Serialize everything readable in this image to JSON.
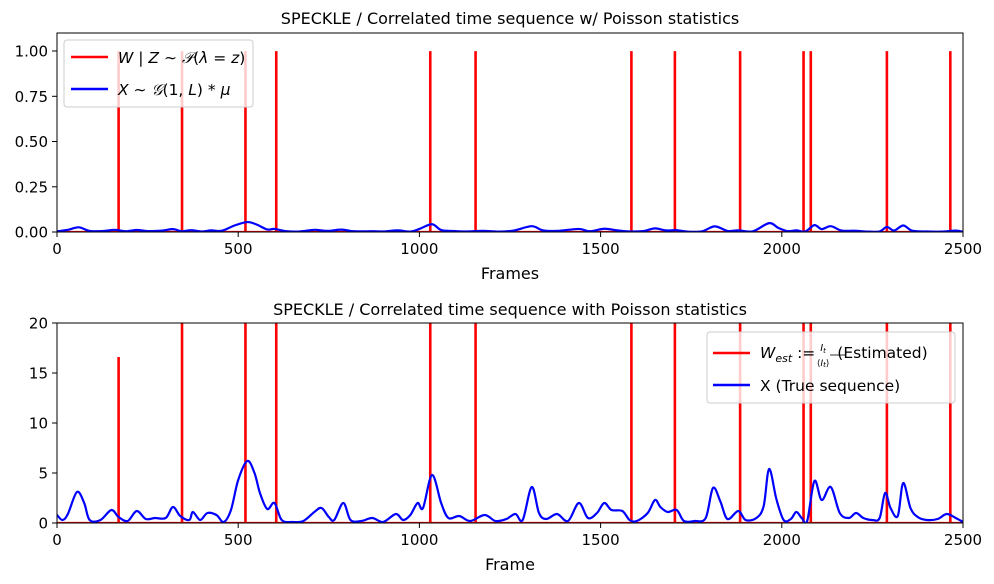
{
  "chart_data": [
    {
      "type": "line",
      "title": "SPECKLE / Correlated time sequence w/ Poisson statistics",
      "xlabel": "Frames",
      "ylabel": "",
      "xlim": [
        0,
        2500
      ],
      "ylim": [
        0,
        1.1
      ],
      "xticks": [
        "0",
        "500",
        "1000",
        "1500",
        "2000",
        "2500"
      ],
      "yticks": [
        "0.00",
        "0.25",
        "0.50",
        "0.75",
        "1.00"
      ],
      "grid": false,
      "legend_position": "top-left",
      "series": [
        {
          "name": "W | Z ~ P(λ = z)",
          "color": "#ff0000",
          "kind": "spikes",
          "points": [
            [
              170,
              1
            ],
            [
              345,
              1
            ],
            [
              520,
              1
            ],
            [
              605,
              1
            ],
            [
              1030,
              1
            ],
            [
              1155,
              1
            ],
            [
              1585,
              1
            ],
            [
              1705,
              1
            ],
            [
              1885,
              1
            ],
            [
              2060,
              1
            ],
            [
              2080,
              1
            ],
            [
              2290,
              1
            ],
            [
              2465,
              1
            ]
          ]
        },
        {
          "name": "X ~ G(1, L) * μ",
          "color": "#0000ff",
          "kind": "smooth",
          "points": [
            [
              0,
              0.004
            ],
            [
              30,
              0.012
            ],
            [
              60,
              0.026
            ],
            [
              90,
              0.006
            ],
            [
              125,
              0.005
            ],
            [
              160,
              0.012
            ],
            [
              190,
              0.004
            ],
            [
              220,
              0.011
            ],
            [
              250,
              0.005
            ],
            [
              290,
              0.008
            ],
            [
              320,
              0.016
            ],
            [
              345,
              0.004
            ],
            [
              370,
              0.01
            ],
            [
              400,
              0.003
            ],
            [
              425,
              0.009
            ],
            [
              455,
              0.007
            ],
            [
              490,
              0.036
            ],
            [
              525,
              0.055
            ],
            [
              550,
              0.042
            ],
            [
              580,
              0.014
            ],
            [
              600,
              0.017
            ],
            [
              630,
              0.005
            ],
            [
              670,
              0.003
            ],
            [
              710,
              0.012
            ],
            [
              745,
              0.006
            ],
            [
              785,
              0.013
            ],
            [
              820,
              0.004
            ],
            [
              870,
              0.004
            ],
            [
              900,
              0.003
            ],
            [
              940,
              0.009
            ],
            [
              975,
              0.002
            ],
            [
              1000,
              0.017
            ],
            [
              1035,
              0.043
            ],
            [
              1060,
              0.011
            ],
            [
              1100,
              0.005
            ],
            [
              1130,
              0.003
            ],
            [
              1175,
              0.006
            ],
            [
              1220,
              0.002
            ],
            [
              1260,
              0.008
            ],
            [
              1310,
              0.032
            ],
            [
              1340,
              0.009
            ],
            [
              1380,
              0.006
            ],
            [
              1440,
              0.017
            ],
            [
              1470,
              0.004
            ],
            [
              1510,
              0.018
            ],
            [
              1545,
              0.009
            ],
            [
              1580,
              0.003
            ],
            [
              1620,
              0.006
            ],
            [
              1650,
              0.02
            ],
            [
              1680,
              0.009
            ],
            [
              1710,
              0.01
            ],
            [
              1740,
              0.002
            ],
            [
              1780,
              0.004
            ],
            [
              1815,
              0.031
            ],
            [
              1850,
              0.006
            ],
            [
              1880,
              0.009
            ],
            [
              1920,
              0.004
            ],
            [
              1965,
              0.049
            ],
            [
              1990,
              0.023
            ],
            [
              2015,
              0.005
            ],
            [
              2040,
              0.009
            ],
            [
              2065,
              0.003
            ],
            [
              2090,
              0.038
            ],
            [
              2110,
              0.016
            ],
            [
              2135,
              0.032
            ],
            [
              2165,
              0.008
            ],
            [
              2200,
              0.007
            ],
            [
              2240,
              0.002
            ],
            [
              2270,
              0.003
            ],
            [
              2290,
              0.028
            ],
            [
              2310,
              0.008
            ],
            [
              2335,
              0.036
            ],
            [
              2360,
              0.007
            ],
            [
              2400,
              0.003
            ],
            [
              2440,
              0.002
            ],
            [
              2480,
              0.008
            ],
            [
              2500,
              0.001
            ]
          ]
        }
      ]
    },
    {
      "type": "line",
      "title": "SPECKLE / Correlated time sequence with Poisson statistics",
      "xlabel": "Frame",
      "ylabel": "",
      "xlim": [
        0,
        2500
      ],
      "ylim": [
        0,
        20
      ],
      "xticks": [
        "0",
        "500",
        "1000",
        "1500",
        "2000",
        "2500"
      ],
      "yticks": [
        "0",
        "5",
        "10",
        "15",
        "20"
      ],
      "grid": false,
      "legend_position": "top-right",
      "series": [
        {
          "name": "W_est := I_t / ⟨I_t⟩ (Estimated)",
          "color": "#ff0000",
          "kind": "spikes",
          "points": [
            [
              170,
              16.6
            ],
            [
              345,
              25
            ],
            [
              520,
              25
            ],
            [
              605,
              25
            ],
            [
              1030,
              25
            ],
            [
              1155,
              25
            ],
            [
              1585,
              25
            ],
            [
              1705,
              25
            ],
            [
              1885,
              25
            ],
            [
              2060,
              25
            ],
            [
              2080,
              25
            ],
            [
              2290,
              25
            ],
            [
              2465,
              25
            ]
          ]
        },
        {
          "name": "X (True sequence)",
          "color": "#0000ff",
          "kind": "smooth",
          "points": [
            [
              0,
              0.8
            ],
            [
              15,
              0.3
            ],
            [
              30,
              0.9
            ],
            [
              55,
              3.1
            ],
            [
              75,
              2.0
            ],
            [
              90,
              0.3
            ],
            [
              120,
              0.3
            ],
            [
              150,
              1.3
            ],
            [
              170,
              0.6
            ],
            [
              195,
              0.2
            ],
            [
              220,
              1.2
            ],
            [
              245,
              0.4
            ],
            [
              270,
              0.5
            ],
            [
              300,
              0.5
            ],
            [
              320,
              1.6
            ],
            [
              340,
              0.7
            ],
            [
              365,
              0.3
            ],
            [
              375,
              1.1
            ],
            [
              395,
              0.3
            ],
            [
              415,
              1.0
            ],
            [
              440,
              0.8
            ],
            [
              460,
              0.1
            ],
            [
              480,
              1.3
            ],
            [
              500,
              4.3
            ],
            [
              525,
              6.2
            ],
            [
              545,
              5.0
            ],
            [
              560,
              3.0
            ],
            [
              580,
              1.4
            ],
            [
              600,
              2.0
            ],
            [
              620,
              0.3
            ],
            [
              650,
              0.1
            ],
            [
              680,
              0.2
            ],
            [
              710,
              1.1
            ],
            [
              730,
              1.5
            ],
            [
              750,
              0.6
            ],
            [
              765,
              0.3
            ],
            [
              790,
              2.0
            ],
            [
              810,
              0.3
            ],
            [
              840,
              0.2
            ],
            [
              870,
              0.5
            ],
            [
              900,
              0.1
            ],
            [
              935,
              0.9
            ],
            [
              955,
              0.3
            ],
            [
              975,
              0.8
            ],
            [
              995,
              2.0
            ],
            [
              1010,
              1.5
            ],
            [
              1035,
              4.8
            ],
            [
              1060,
              2.0
            ],
            [
              1080,
              0.5
            ],
            [
              1110,
              0.7
            ],
            [
              1140,
              0.2
            ],
            [
              1180,
              0.8
            ],
            [
              1210,
              0.2
            ],
            [
              1240,
              0.4
            ],
            [
              1265,
              0.9
            ],
            [
              1285,
              0.3
            ],
            [
              1310,
              3.6
            ],
            [
              1330,
              1.0
            ],
            [
              1350,
              0.4
            ],
            [
              1380,
              0.9
            ],
            [
              1410,
              0.2
            ],
            [
              1440,
              2.0
            ],
            [
              1465,
              0.5
            ],
            [
              1490,
              1.0
            ],
            [
              1510,
              2.0
            ],
            [
              1530,
              1.3
            ],
            [
              1560,
              1.2
            ],
            [
              1580,
              0.3
            ],
            [
              1600,
              0.2
            ],
            [
              1630,
              1.0
            ],
            [
              1650,
              2.3
            ],
            [
              1665,
              1.6
            ],
            [
              1685,
              1.1
            ],
            [
              1710,
              1.3
            ],
            [
              1730,
              0.2
            ],
            [
              1760,
              0.2
            ],
            [
              1790,
              0.5
            ],
            [
              1810,
              3.5
            ],
            [
              1830,
              2.2
            ],
            [
              1850,
              0.4
            ],
            [
              1880,
              1.2
            ],
            [
              1900,
              0.3
            ],
            [
              1930,
              0.5
            ],
            [
              1950,
              1.7
            ],
            [
              1965,
              5.4
            ],
            [
              1985,
              2.4
            ],
            [
              2005,
              0.3
            ],
            [
              2025,
              0.4
            ],
            [
              2040,
              1.1
            ],
            [
              2055,
              0.5
            ],
            [
              2070,
              0.2
            ],
            [
              2090,
              4.2
            ],
            [
              2110,
              2.3
            ],
            [
              2135,
              3.6
            ],
            [
              2160,
              1.0
            ],
            [
              2185,
              0.5
            ],
            [
              2205,
              1.0
            ],
            [
              2225,
              0.5
            ],
            [
              2250,
              0.3
            ],
            [
              2270,
              0.5
            ],
            [
              2285,
              3.0
            ],
            [
              2300,
              1.5
            ],
            [
              2320,
              0.7
            ],
            [
              2335,
              4.0
            ],
            [
              2355,
              1.5
            ],
            [
              2375,
              0.6
            ],
            [
              2400,
              0.3
            ],
            [
              2430,
              0.4
            ],
            [
              2455,
              0.9
            ],
            [
              2480,
              0.5
            ],
            [
              2500,
              0.1
            ]
          ]
        }
      ]
    }
  ]
}
